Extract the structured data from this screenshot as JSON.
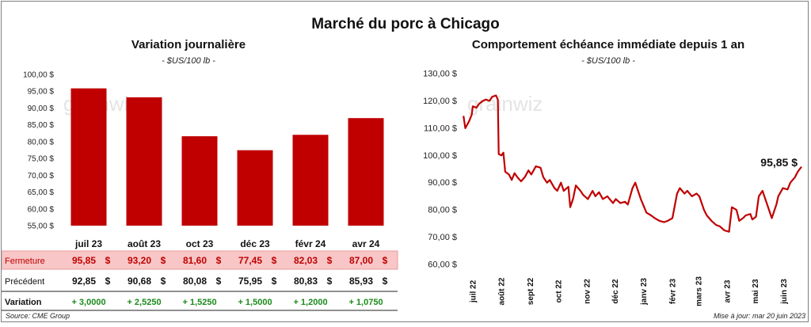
{
  "title": "Marché du porc à Chicago",
  "source": "Source: CME Group",
  "updated": "Mise à jour: mar 20 juin 2023",
  "watermark": "grainwiz",
  "colors": {
    "bar": "#c00000",
    "line": "#c00000",
    "fermeture_bg": "#f8c6c6",
    "positive": "#1a8a1a"
  },
  "chart_data": [
    {
      "type": "bar",
      "title": "Variation journalière",
      "subtitle": "- $US/100 lb -",
      "categories": [
        "juil 23",
        "août 23",
        "oct 23",
        "déc 23",
        "févr 24",
        "avr 24"
      ],
      "values": [
        95.85,
        93.2,
        81.6,
        77.45,
        82.03,
        87.0
      ],
      "ylim": [
        55,
        100
      ],
      "yticks": [
        "55,00 $",
        "60,00 $",
        "65,00 $",
        "70,00 $",
        "75,00 $",
        "80,00 $",
        "85,00 $",
        "90,00 $",
        "95,00 $",
        "100,00 $"
      ],
      "grid": false,
      "table": {
        "rows": [
          {
            "label": "Fermeture",
            "cells": [
              "95,85",
              "93,20",
              "81,60",
              "77,45",
              "82,03",
              "87,00"
            ],
            "unit": "$"
          },
          {
            "label": "Précédent",
            "cells": [
              "92,85",
              "90,68",
              "80,08",
              "75,95",
              "80,83",
              "85,93"
            ],
            "unit": "$"
          },
          {
            "label": "Variation",
            "cells": [
              "+ 3,0000",
              "+ 2,5250",
              "+ 1,5250",
              "+ 1,5000",
              "+ 1,2000",
              "+ 1,0750"
            ],
            "unit": ""
          }
        ]
      }
    },
    {
      "type": "line",
      "title": "Comportement échéance immédiate depuis 1 an",
      "subtitle": "- $US/100 lb -",
      "ylim": [
        60,
        130
      ],
      "yticks": [
        "60,00 $",
        "70,00 $",
        "80,00 $",
        "90,00 $",
        "100,00 $",
        "110,00 $",
        "120,00 $",
        "130,00 $"
      ],
      "xticks": [
        "juil 22",
        "août 22",
        "sept 22",
        "oct 22",
        "nov 22",
        "déc 22",
        "janv 23",
        "févr 23",
        "mars 23",
        "avr 23",
        "mai 23",
        "juin 23"
      ],
      "x_range": [
        "2022-06-20",
        "2023-06-20"
      ],
      "last_label": "95,85 $",
      "grid": false,
      "series": [
        {
          "x": [
            "2022-06-21",
            "2022-06-23",
            "2022-06-27",
            "2022-06-30",
            "2022-07-01",
            "2022-07-05",
            "2022-07-08",
            "2022-07-12",
            "2022-07-15",
            "2022-07-19",
            "2022-07-22",
            "2022-07-26",
            "2022-07-28",
            "2022-07-29",
            "2022-08-01",
            "2022-08-03",
            "2022-08-05",
            "2022-08-09",
            "2022-08-12",
            "2022-08-15",
            "2022-08-18",
            "2022-08-22",
            "2022-08-26",
            "2022-08-30",
            "2022-09-02",
            "2022-09-07",
            "2022-09-12",
            "2022-09-15",
            "2022-09-19",
            "2022-09-22",
            "2022-09-27",
            "2022-09-30",
            "2022-10-04",
            "2022-10-07",
            "2022-10-12",
            "2022-10-14",
            "2022-10-17",
            "2022-10-20",
            "2022-10-25",
            "2022-10-28",
            "2022-11-02",
            "2022-11-07",
            "2022-11-10",
            "2022-11-14",
            "2022-11-18",
            "2022-11-23",
            "2022-11-29",
            "2022-12-02",
            "2022-12-07",
            "2022-12-12",
            "2022-12-15",
            "2022-12-20",
            "2022-12-23",
            "2022-12-29",
            "2023-01-04",
            "2023-01-09",
            "2023-01-13",
            "2023-01-18",
            "2023-01-23",
            "2023-01-27",
            "2023-02-01",
            "2023-02-06",
            "2023-02-09",
            "2023-02-14",
            "2023-02-17",
            "2023-02-22",
            "2023-02-27",
            "2023-03-02",
            "2023-03-07",
            "2023-03-10",
            "2023-03-15",
            "2023-03-20",
            "2023-03-24",
            "2023-03-29",
            "2023-04-03",
            "2023-04-06",
            "2023-04-11",
            "2023-04-14",
            "2023-04-18",
            "2023-04-21",
            "2023-04-26",
            "2023-04-28",
            "2023-05-02",
            "2023-05-05",
            "2023-05-09",
            "2023-05-12",
            "2023-05-16",
            "2023-05-19",
            "2023-05-24",
            "2023-05-26",
            "2023-05-31",
            "2023-06-05",
            "2023-06-08",
            "2023-06-13",
            "2023-06-16",
            "2023-06-20"
          ],
          "values": [
            114.5,
            110.0,
            112.5,
            115.0,
            118.0,
            117.5,
            119.0,
            120.0,
            120.5,
            120.0,
            121.5,
            122.0,
            120.5,
            100.5,
            100.0,
            101.0,
            94.0,
            93.0,
            91.0,
            93.5,
            92.0,
            90.5,
            92.0,
            94.5,
            93.0,
            96.0,
            95.5,
            92.0,
            90.0,
            91.0,
            88.0,
            87.0,
            90.0,
            87.0,
            88.5,
            81.0,
            84.0,
            89.0,
            87.0,
            85.5,
            84.0,
            87.0,
            85.0,
            86.5,
            84.0,
            85.0,
            82.5,
            84.0,
            82.5,
            83.0,
            82.0,
            88.0,
            90.0,
            84.0,
            79.0,
            78.0,
            77.0,
            76.0,
            75.5,
            76.0,
            77.0,
            86.0,
            88.0,
            86.0,
            87.0,
            85.0,
            86.0,
            85.0,
            80.0,
            78.0,
            76.0,
            74.5,
            74.0,
            72.5,
            72.0,
            81.0,
            80.0,
            76.0,
            77.0,
            78.0,
            78.5,
            76.5,
            77.5,
            85.0,
            87.0,
            84.0,
            80.0,
            77.0,
            82.0,
            85.0,
            88.0,
            87.5,
            90.0,
            92.0,
            94.0,
            95.85
          ]
        }
      ]
    }
  ]
}
